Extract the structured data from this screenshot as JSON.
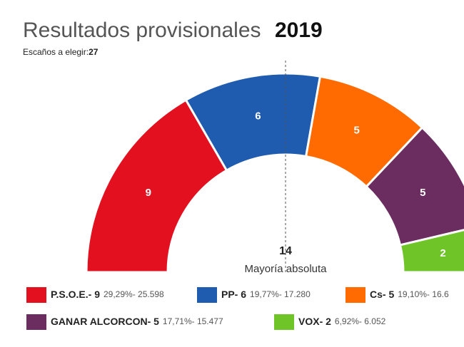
{
  "chart_data": {
    "type": "half-donut",
    "title": "Resultados provisionales",
    "year": "2019",
    "subtitle": "Escaños a elegir:",
    "seats_total": 27,
    "majority": 14,
    "majority_label": "Mayoría absoluta",
    "series": [
      {
        "name": "P.S.O.E.- 9",
        "color": "#e3101f",
        "value": 9,
        "detail": "29,29%- 25.598"
      },
      {
        "name": "PP- 6",
        "color": "#1f5bae",
        "value": 6,
        "detail": "19,77%- 17.280"
      },
      {
        "name": "Cs- 5",
        "color": "#ff6b00",
        "value": 5,
        "detail": "19,10%- 16.6"
      },
      {
        "name": "GANAR ALCORCON- 5",
        "color": "#6b2d60",
        "value": 5,
        "detail": "17,71%- 15.477"
      },
      {
        "name": "VOX- 2",
        "color": "#6fc427",
        "value": 2,
        "detail": "6,92%- 6.052"
      }
    ]
  }
}
